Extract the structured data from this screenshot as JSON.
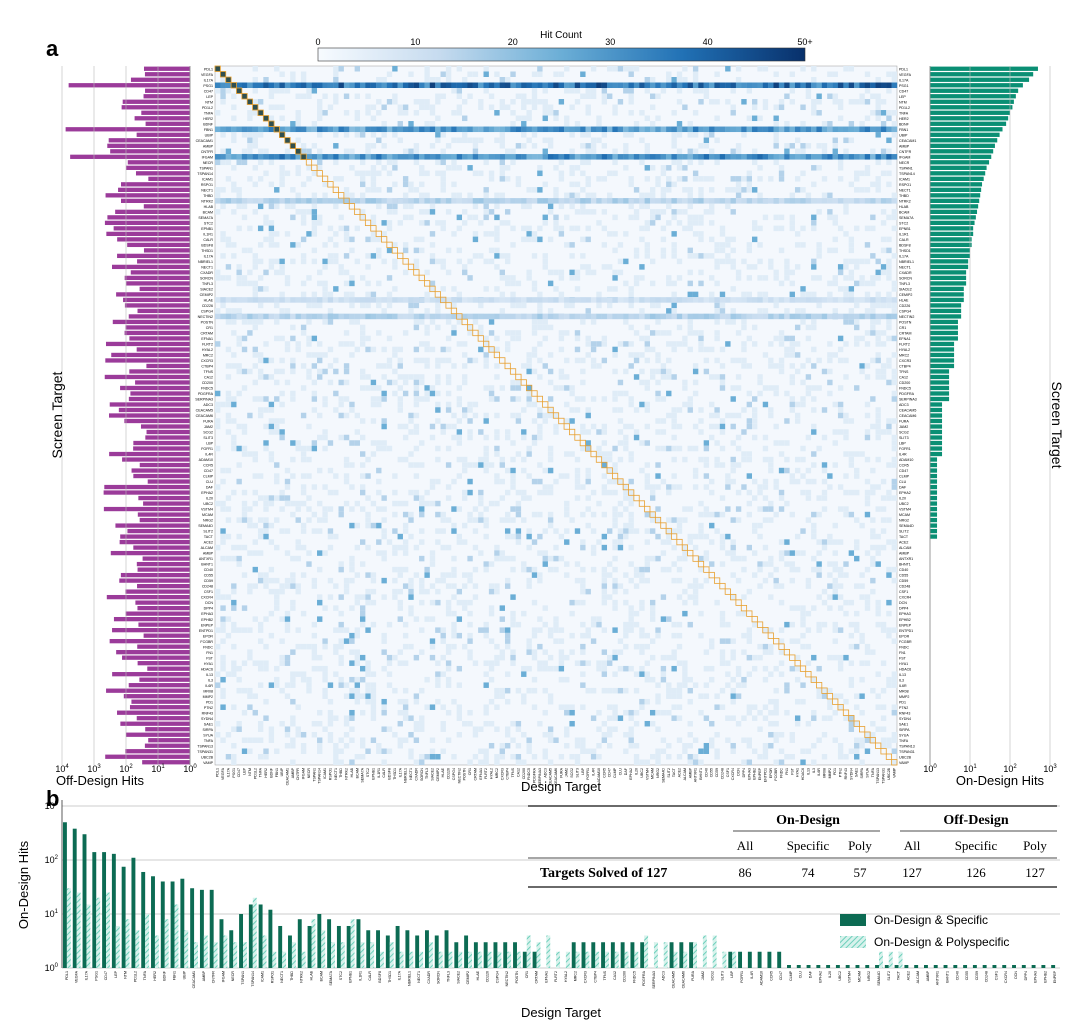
{
  "panel_a_letter": "a",
  "panel_b_letter": "b",
  "colors": {
    "heatmap_high": "#08306b",
    "heatmap_low": "#f7fbff",
    "off_design_bar": "#9b3b9a",
    "on_design_bar": "#0a8f74",
    "on_specific": "#0c6b53",
    "on_poly": "#a8e3d6",
    "diagonal_box": "#e8a030"
  },
  "chart_data": [
    {
      "type": "heatmap",
      "xlabel": "Design Target",
      "ylabel_left": "Screen Target",
      "ylabel_right": "Screen Target",
      "colorbar": {
        "label": "Hit Count",
        "ticks": [
          "0",
          "10",
          "20",
          "30",
          "40",
          "50+"
        ],
        "range": [
          0,
          50
        ]
      },
      "targets": [
        "PDL1",
        "VEGFA",
        "IL17A",
        "PSG1",
        "CD47",
        "LEP",
        "NTM",
        "PD1L2",
        "TNFA",
        "HER2",
        "BDNF",
        "FBN1",
        "UBIP",
        "CEACAM1",
        "AMBP",
        "CNTFR",
        "IFGAM",
        "NECR",
        "TSPAN1",
        "TSPAN14",
        "ICAM1",
        "RSPO1",
        "NECT1",
        "THBD",
        "NTRK2",
        "HLAB",
        "BCAM",
        "SEMA7A",
        "STC2",
        "EPNB1",
        "IL1R1",
        "CALR",
        "BDSF8",
        "THSD1",
        "IL17A",
        "NBRIEL1",
        "NECT1",
        "CXADR",
        "SORCN",
        "TNFL3",
        "SIACE2",
        "CEMIP2",
        "HLAE",
        "CD226",
        "CSPG4",
        "NECTIN2",
        "POSTN",
        "CR1",
        "CRTAM",
        "EFNA1",
        "FLRT2",
        "HYAL2",
        "MRC2",
        "CXCR3",
        "CTBP4",
        "TFNS",
        "CA12",
        "CD200",
        "FNDC5",
        "PDGFRA",
        "SERPINA3",
        "ADC3",
        "CEACAM5",
        "CEACAM6",
        "FURA",
        "JAM2",
        "SCG2",
        "SLIT3",
        "LBP",
        "FGFR1",
        "IL4R",
        "ADAM10",
        "CCR5",
        "CD47",
        "CLMP",
        "CLU",
        "DAF",
        "EPHA2",
        "IL20",
        "UBC2",
        "VSTM4",
        "MCAM",
        "NRG2",
        "SEMA4D",
        "SLIT2",
        "TACT",
        "ACE2",
        "ALCAM",
        "AMBP",
        "ANTXR1",
        "BHNT1",
        "CD40",
        "CD55",
        "CD59",
        "CD248",
        "CSF1",
        "CXCR4",
        "DCN",
        "DPP4",
        "EPHA3",
        "EPHB2",
        "ENPEP",
        "ENTPD1",
        "EPOR",
        "FCGBR",
        "FNDC",
        "FN1",
        "FST",
        "HYA1",
        "HDAC6",
        "IL13",
        "IL3",
        "IL6R",
        "MR08",
        "MMP2",
        "PD1",
        "PTN2",
        "RNF43",
        "SYDN4",
        "SAE1",
        "SIRPA",
        "SYUA",
        "TNFA",
        "TSPAN13",
        "TSPAN31",
        "UBC2B",
        "VAMP"
      ],
      "ticks_shown": "labels too small to read fully; approximated",
      "diagonal_highlight": true,
      "left_bars": {
        "label": "Off-Design Hits",
        "scale": "log",
        "ticks": [
          "10^4",
          "10^3",
          "10^2",
          "10^1",
          "10^0"
        ]
      },
      "right_bars": {
        "label": "On-Design Hits",
        "scale": "log",
        "ticks": [
          "10^0",
          "10^1",
          "10^2",
          "10^3"
        ],
        "values": [
          500,
          380,
          300,
          210,
          160,
          140,
          125,
          115,
          100,
          90,
          80,
          65,
          55,
          48,
          42,
          38,
          34,
          30,
          26,
          24,
          22,
          20,
          19,
          18,
          17,
          16,
          15,
          14,
          13,
          12,
          12,
          11,
          11,
          10,
          10,
          9,
          9,
          8,
          8,
          8,
          7,
          7,
          7,
          6,
          6,
          6,
          5,
          5,
          5,
          5,
          4,
          4,
          4,
          4,
          4,
          3,
          3,
          3,
          3,
          3,
          3,
          2,
          2,
          2,
          2,
          2,
          2,
          2,
          2,
          2,
          2,
          1.5,
          1.5,
          1.5,
          1.5,
          1.5,
          1.5,
          1.5,
          1.5,
          1.5,
          1.5,
          1.5,
          1.5,
          1.5,
          1.5,
          1.5
        ]
      }
    },
    {
      "type": "bar",
      "xlabel": "Design Target",
      "ylabel": "On-Design Hits",
      "yscale": "log",
      "ylim": [
        1,
        1000
      ],
      "yticks": [
        "10^0",
        "10^1",
        "10^2",
        "10^3"
      ],
      "series": [
        {
          "name": "On-Design & Specific",
          "values": [
            500,
            380,
            300,
            140,
            140,
            130,
            75,
            110,
            60,
            50,
            40,
            40,
            45,
            30,
            28,
            28,
            8,
            5,
            10,
            15,
            15,
            12,
            6,
            4,
            8,
            6,
            10,
            8,
            6,
            6,
            8,
            5,
            5,
            4,
            6,
            5,
            4,
            5,
            4,
            5,
            3,
            4,
            3,
            3,
            3,
            3,
            3,
            2,
            2,
            0,
            0,
            0,
            3,
            3,
            3,
            3,
            3,
            3,
            3,
            3,
            0,
            0,
            3,
            3,
            3,
            0,
            0,
            0,
            2,
            2,
            2,
            2,
            2,
            2,
            1,
            1,
            1,
            1,
            1,
            1,
            1,
            1,
            1,
            1,
            1,
            1,
            1,
            1,
            1,
            1,
            1,
            1,
            1,
            1,
            1,
            1,
            1,
            1,
            1,
            1,
            1,
            1
          ]
        },
        {
          "name": "On-Design & Polyspecific",
          "values": [
            30,
            25,
            15,
            20,
            25,
            6,
            8,
            5,
            10,
            4,
            8,
            15,
            5,
            3,
            4,
            3,
            4,
            3,
            3,
            20,
            4,
            2,
            2,
            3,
            2,
            8,
            5,
            3,
            3,
            8,
            3,
            3,
            2,
            3,
            2,
            2,
            2,
            3,
            2,
            2,
            2,
            2,
            2,
            2,
            2,
            2,
            2,
            4,
            3,
            4,
            2,
            2,
            2,
            2,
            2,
            2,
            2,
            2,
            2,
            4,
            3,
            3,
            2,
            2,
            3,
            4,
            4,
            2,
            2,
            1,
            1,
            1,
            1,
            1,
            1,
            1,
            1,
            1,
            1,
            1,
            1,
            1,
            1,
            2,
            2,
            2,
            1,
            1,
            1,
            1,
            1,
            1,
            1,
            1,
            1,
            1,
            1,
            1,
            1,
            1,
            1,
            1
          ]
        }
      ],
      "legend": [
        "On-Design & Specific",
        "On-Design & Polyspecific"
      ],
      "legend_position": "right"
    }
  ],
  "table": {
    "group_headers": [
      "On-Design",
      "Off-Design"
    ],
    "sub_headers": [
      "All",
      "Specific",
      "Poly",
      "All",
      "Specific",
      "Poly"
    ],
    "row_label": "Targets Solved of 127",
    "row_values": [
      "86",
      "74",
      "57",
      "127",
      "126",
      "127"
    ]
  }
}
